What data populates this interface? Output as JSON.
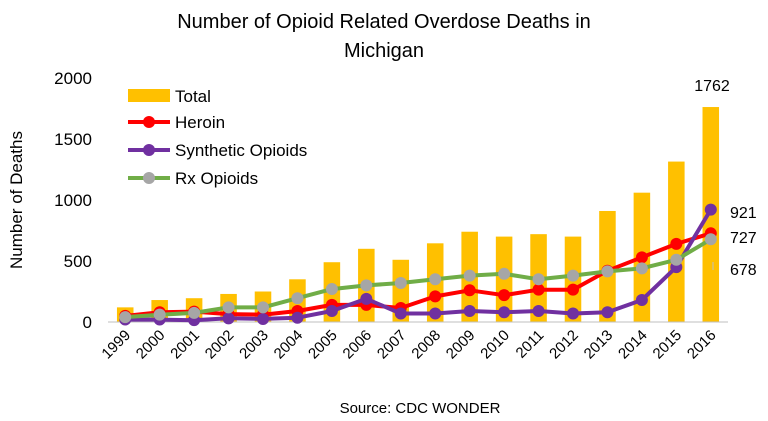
{
  "chart_data": {
    "type": "bar",
    "title_line1": "Number of Opioid Related Overdose Deaths in",
    "title_line2": "Michigan",
    "xlabel": "",
    "ylabel": "Number of Deaths",
    "source_note": "Source: CDC WONDER",
    "ylim": [
      0,
      2000
    ],
    "yticks": [
      "0",
      "500",
      "1000",
      "1500",
      "2000"
    ],
    "categories": [
      "1999",
      "2000",
      "2001",
      "2002",
      "2003",
      "2004",
      "2005",
      "2006",
      "2007",
      "2008",
      "2009",
      "2010",
      "2011",
      "2012",
      "2013",
      "2014",
      "2015",
      "2016"
    ],
    "grid": false,
    "legend_position": "top-left",
    "series": [
      {
        "name": "Total",
        "kind": "bar",
        "color": "#FFC000",
        "values": [
          120,
          180,
          195,
          230,
          250,
          350,
          490,
          600,
          510,
          645,
          740,
          700,
          720,
          700,
          910,
          1060,
          1315,
          1762
        ]
      },
      {
        "name": "Heroin",
        "kind": "line",
        "color": "#FF0000",
        "values": [
          50,
          80,
          85,
          65,
          60,
          90,
          140,
          140,
          115,
          210,
          260,
          220,
          265,
          265,
          420,
          530,
          640,
          727
        ]
      },
      {
        "name": "Synthetic Opioids",
        "kind": "line",
        "color": "#7030A0",
        "values": [
          20,
          20,
          15,
          30,
          25,
          35,
          90,
          190,
          70,
          70,
          90,
          80,
          90,
          70,
          80,
          180,
          450,
          921
        ]
      },
      {
        "name": "Rx Opioids",
        "kind": "line",
        "color": "#70AD47",
        "values": [
          40,
          60,
          75,
          120,
          120,
          195,
          270,
          300,
          320,
          350,
          380,
          395,
          350,
          380,
          415,
          440,
          510,
          678
        ]
      }
    ],
    "data_labels": {
      "total_2016": "1762",
      "synthetic_2016": "921",
      "heroin_2016": "727",
      "rx_2016": "678"
    }
  }
}
